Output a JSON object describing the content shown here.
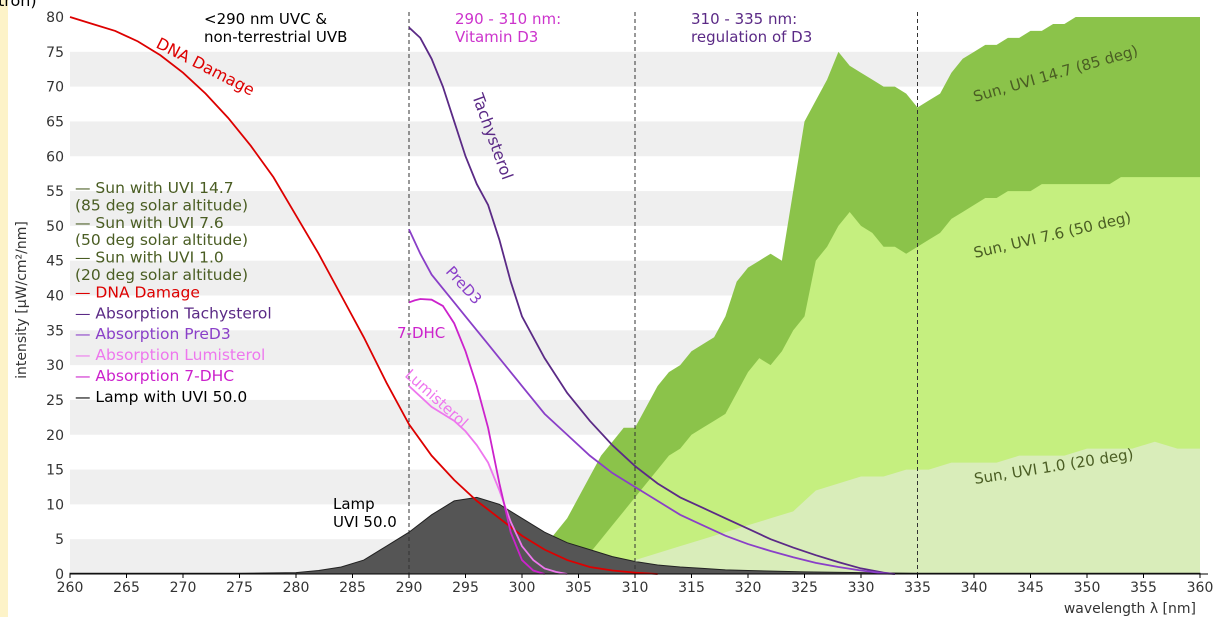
{
  "page": {
    "top_fragment": "tron)"
  },
  "chart_data": {
    "type": "area",
    "xlabel": "wavelength λ [nm]",
    "ylabel": "intensity [µW/cm²/nm]",
    "xlim": [
      260,
      360
    ],
    "ylim": [
      0,
      80
    ],
    "grid": "alternating horizontal bands",
    "x_ticks": [
      260,
      265,
      270,
      275,
      280,
      285,
      290,
      295,
      300,
      305,
      310,
      315,
      320,
      325,
      330,
      335,
      340,
      345,
      350,
      355,
      360
    ],
    "y_ticks": [
      0,
      5,
      10,
      15,
      20,
      25,
      30,
      35,
      40,
      45,
      50,
      55,
      60,
      65,
      70,
      75,
      80
    ],
    "vlines": [
      290,
      310,
      335
    ],
    "region_labels": [
      {
        "lines": [
          "<290 nm UVC &",
          "non-terrestrial UVB"
        ],
        "color": "#000000"
      },
      {
        "lines": [
          "290 - 310 nm:",
          "Vitamin D3"
        ],
        "color": "#cc33cc"
      },
      {
        "lines": [
          "310 - 335 nm:",
          "regulation of D3"
        ],
        "color": "#5b2a86"
      }
    ],
    "legend": {
      "position": "left",
      "items": [
        {
          "lines": [
            "— Sun with UVI 14.7",
            "   (85 deg solar altitude)"
          ],
          "color": "#4a5d23"
        },
        {
          "lines": [
            "— Sun with UVI 7.6",
            "   (50 deg solar altitude)"
          ],
          "color": "#4a5d23"
        },
        {
          "lines": [
            "— Sun with UVI 1.0",
            "   (20 deg solar altitude)"
          ],
          "color": "#4a5d23"
        },
        {
          "lines": [
            "— DNA Damage"
          ],
          "color": "#dd0000"
        },
        {
          "lines": [
            "— Absorption Tachysterol"
          ],
          "color": "#5b2a86"
        },
        {
          "lines": [
            "— Absorption PreD3"
          ],
          "color": "#8a3fc8"
        },
        {
          "lines": [
            "— Absorption Lumisterol"
          ],
          "color": "#ee77ee"
        },
        {
          "lines": [
            "— Absorption 7-DHC"
          ],
          "color": "#cc22cc"
        },
        {
          "lines": [
            "— Lamp with UVI 50.0"
          ],
          "color": "#000000"
        }
      ]
    },
    "series": [
      {
        "name": "Sun, UVI 14.7 (85 deg)",
        "kind": "area",
        "color": "#8bc34a",
        "x": [
          302,
          303,
          304,
          305,
          306,
          307,
          308,
          309,
          310,
          311,
          312,
          313,
          314,
          315,
          316,
          317,
          318,
          319,
          320,
          321,
          322,
          323,
          324,
          325,
          326,
          327,
          328,
          329,
          330,
          331,
          332,
          333,
          334,
          335,
          336,
          337,
          338,
          339,
          340,
          341,
          342,
          343,
          344,
          345,
          346,
          347,
          348,
          349,
          350,
          351,
          352,
          353,
          354,
          355,
          356,
          357,
          358,
          359,
          360
        ],
        "y": [
          4,
          6,
          8,
          11,
          14,
          17,
          19,
          21,
          21,
          24,
          27,
          29,
          30,
          32,
          33,
          34,
          37,
          42,
          44,
          45,
          46,
          45,
          55,
          65,
          68,
          71,
          75,
          73,
          72,
          71,
          70,
          70,
          69,
          67,
          68,
          69,
          72,
          74,
          75,
          76,
          76,
          77,
          77,
          78,
          78,
          79,
          79,
          80,
          80,
          80,
          80,
          80,
          80,
          80,
          80,
          80,
          80,
          80,
          80
        ]
      },
      {
        "name": "Sun, UVI 7.6 (50 deg)",
        "kind": "area",
        "color": "#c5ef7f",
        "x": [
          305,
          306,
          307,
          308,
          309,
          310,
          311,
          312,
          313,
          314,
          315,
          316,
          317,
          318,
          319,
          320,
          321,
          322,
          323,
          324,
          325,
          326,
          327,
          328,
          329,
          330,
          331,
          332,
          333,
          334,
          335,
          336,
          337,
          338,
          339,
          340,
          341,
          342,
          343,
          344,
          345,
          346,
          347,
          348,
          349,
          350,
          351,
          352,
          353,
          354,
          355,
          356,
          357,
          358,
          359,
          360
        ],
        "y": [
          1,
          3,
          5,
          7,
          9,
          11,
          13,
          15,
          17,
          18,
          20,
          21,
          22,
          23,
          26,
          29,
          31,
          30,
          32,
          35,
          37,
          45,
          47,
          50,
          52,
          50,
          49,
          47,
          47,
          46,
          47,
          48,
          49,
          51,
          52,
          53,
          54,
          54,
          55,
          55,
          55,
          56,
          56,
          56,
          56,
          56,
          56,
          56,
          57,
          57,
          57,
          57,
          57,
          57,
          57,
          57
        ]
      },
      {
        "name": "Sun, UVI 1.0 (20 deg)",
        "kind": "area",
        "color": "#d9edba",
        "x": [
          308,
          310,
          312,
          314,
          316,
          318,
          320,
          322,
          324,
          326,
          328,
          330,
          332,
          334,
          336,
          338,
          340,
          342,
          344,
          346,
          348,
          350,
          352,
          354,
          356,
          358,
          360
        ],
        "y": [
          1,
          2,
          3,
          4,
          5,
          6,
          7,
          8,
          9,
          12,
          13,
          14,
          14,
          15,
          15,
          16,
          16,
          16,
          17,
          17,
          17,
          18,
          18,
          18,
          19,
          18,
          18
        ]
      },
      {
        "name": "Lamp UVI 50.0",
        "kind": "area",
        "color": "#555555",
        "x": [
          260,
          265,
          270,
          275,
          280,
          282,
          284,
          286,
          288,
          290,
          292,
          294,
          296,
          298,
          300,
          302,
          304,
          306,
          308,
          310,
          312,
          314,
          316,
          318,
          320,
          325,
          330,
          335,
          340,
          345,
          350,
          355,
          360
        ],
        "y": [
          0.1,
          0.1,
          0.1,
          0.1,
          0.2,
          0.5,
          1,
          2,
          4,
          6,
          8.5,
          10.5,
          11,
          10,
          8,
          6,
          4.5,
          3.5,
          2.5,
          1.8,
          1.3,
          1,
          0.8,
          0.6,
          0.5,
          0.3,
          0.2,
          0.1,
          0.1,
          0.1,
          0.1,
          0.1,
          0.1
        ]
      },
      {
        "name": "DNA Damage",
        "kind": "line",
        "color": "#dd0000",
        "x": [
          260,
          262,
          264,
          266,
          268,
          270,
          272,
          274,
          276,
          278,
          280,
          282,
          284,
          286,
          288,
          290,
          292,
          294,
          296,
          298,
          300,
          302,
          304,
          306,
          308,
          310,
          312
        ],
        "y": [
          80,
          79,
          78,
          76.5,
          74.5,
          72,
          69,
          65.5,
          61.5,
          57,
          51.5,
          46,
          40,
          34,
          27.5,
          21.5,
          17,
          13.5,
          10.5,
          8,
          5.5,
          3.5,
          2,
          1,
          0.5,
          0.2,
          0
        ]
      },
      {
        "name": "Tachysterol",
        "kind": "line",
        "color": "#5b2a86",
        "x": [
          290,
          291,
          292,
          293,
          294,
          295,
          296,
          297,
          298,
          299,
          300,
          302,
          304,
          306,
          308,
          310,
          312,
          314,
          316,
          318,
          320,
          322,
          324,
          326,
          328,
          330,
          332,
          333
        ],
        "y": [
          78.5,
          77,
          74,
          70,
          65,
          60,
          56,
          53,
          48,
          42,
          37,
          31,
          26,
          22,
          18.5,
          15.5,
          13,
          11,
          9.5,
          8,
          6.5,
          5,
          3.8,
          2.7,
          1.7,
          0.8,
          0.2,
          0
        ]
      },
      {
        "name": "PreD3",
        "kind": "line",
        "color": "#8a3fc8",
        "x": [
          290,
          291,
          292,
          293,
          294,
          295,
          296,
          297,
          298,
          300,
          302,
          304,
          306,
          308,
          310,
          312,
          314,
          316,
          318,
          320,
          322,
          324,
          326,
          328,
          330,
          332,
          333
        ],
        "y": [
          49.5,
          46,
          43,
          41,
          39,
          37,
          35,
          33,
          31,
          27,
          23,
          20,
          17,
          14.5,
          12.5,
          10.5,
          8.5,
          7,
          5.5,
          4.3,
          3.3,
          2.4,
          1.6,
          1,
          0.5,
          0.1,
          0
        ]
      },
      {
        "name": "Lumisterol",
        "kind": "line",
        "color": "#ee77ee",
        "x": [
          290,
          291,
          292,
          293,
          294,
          295,
          296,
          297,
          298,
          299,
          300,
          301,
          302,
          303,
          304
        ],
        "y": [
          27,
          25.5,
          24,
          23,
          22,
          20.5,
          18.5,
          16,
          12,
          7.5,
          4,
          2,
          0.8,
          0.3,
          0
        ]
      },
      {
        "name": "7-DHC",
        "kind": "line",
        "color": "#cc22cc",
        "x": [
          290,
          290.5,
          291,
          292,
          293,
          294,
          295,
          296,
          297,
          298,
          299,
          300,
          301,
          302
        ],
        "y": [
          39,
          39.3,
          39.5,
          39.4,
          38.5,
          36,
          32,
          27,
          21,
          13,
          6,
          2,
          0.5,
          0
        ]
      }
    ],
    "series_labels": [
      {
        "text": "DNA Damage",
        "color": "#dd0000"
      },
      {
        "text": "Tachysterol",
        "color": "#5b2a86"
      },
      {
        "text": "PreD3",
        "color": "#8a3fc8"
      },
      {
        "text": "7-DHC",
        "color": "#cc22cc"
      },
      {
        "text": "Lumisterol",
        "color": "#ee77ee"
      },
      {
        "text": "Sun, UVI 14.7 (85 deg)",
        "color": "#4a5d23"
      },
      {
        "text": "Sun, UVI 7.6 (50 deg)",
        "color": "#4a5d23"
      },
      {
        "text": "Sun, UVI 1.0 (20 deg)",
        "color": "#4a5d23"
      },
      {
        "text": "Lamp",
        "color": "#000000"
      },
      {
        "text": "UVI 50.0",
        "color": "#000000"
      }
    ]
  }
}
